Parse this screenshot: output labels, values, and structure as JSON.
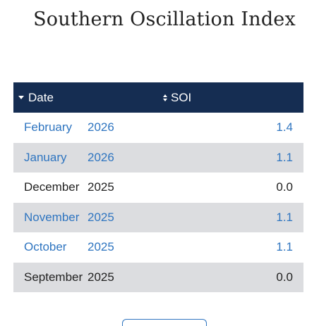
{
  "title": "Southern Oscillation Index",
  "table": {
    "headers": {
      "date": "Date",
      "soi": "SOI"
    },
    "rows": [
      {
        "month": "February",
        "year": "2026",
        "value": "1.4",
        "linked": true
      },
      {
        "month": "January",
        "year": "2026",
        "value": "1.1",
        "linked": true
      },
      {
        "month": "December",
        "year": "2025",
        "value": "0.0",
        "linked": false
      },
      {
        "month": "November",
        "year": "2025",
        "value": "1.1",
        "linked": true
      },
      {
        "month": "October",
        "year": "2025",
        "value": "1.1",
        "linked": true
      },
      {
        "month": "September",
        "year": "2025",
        "value": "0.0",
        "linked": false
      }
    ]
  },
  "colors": {
    "header_bg": "#152d52",
    "link": "#2f75c0",
    "alt_row": "#dcdde0"
  },
  "icons": {
    "date_sort": "sort-descending-icon",
    "soi_sort": "sort-both-icon"
  }
}
